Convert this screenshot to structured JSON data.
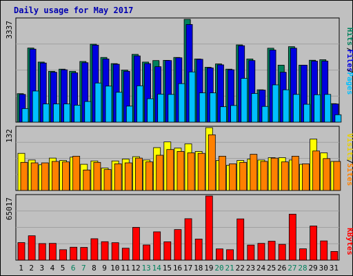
{
  "title": "Daily usage for May 2017",
  "colors": {
    "background": "#c0c0c0",
    "title": "#0000b0",
    "hits": "#00805c",
    "files": "#0000e0",
    "pages": "#00c0ff",
    "visits": "#ffff00",
    "sites": "#ff8000",
    "kbytes": "#ff0000",
    "weekend_label": "#00805c",
    "weekday_label": "#000000"
  },
  "legend": {
    "pages": "Pages",
    "files": "Files",
    "hits": "Hits",
    "sites": "Sites",
    "visits": "Visits",
    "kbytes": "KBytes",
    "sep": "/"
  },
  "chart_data": {
    "type": "bar",
    "title": "Daily usage for May 2017",
    "categories": [
      "1",
      "2",
      "3",
      "4",
      "5",
      "6",
      "7",
      "8",
      "9",
      "10",
      "11",
      "12",
      "13",
      "14",
      "15",
      "16",
      "17",
      "18",
      "19",
      "20",
      "21",
      "22",
      "23",
      "24",
      "25",
      "26",
      "27",
      "28",
      "29",
      "30",
      "31"
    ],
    "weekend_days": [
      "6",
      "7",
      "13",
      "14",
      "20",
      "21",
      "27",
      "28"
    ],
    "panels": [
      {
        "name": "hits-files-pages",
        "ymax": 3337,
        "ymax_label": "3337",
        "series": [
          {
            "name": "Hits",
            "values": [
              925,
              2405,
              1950,
              1650,
              1720,
              1650,
              1970,
              2530,
              2100,
              1900,
              1690,
              2200,
              1950,
              2000,
              2006,
              2100,
              3337,
              2050,
              1780,
              1890,
              1720,
              2508,
              2050,
              1050,
              2400,
              1850,
              2450,
              1850,
              2010,
              2026,
              600
            ]
          },
          {
            "name": "Files",
            "values": [
              900,
              2370,
              1920,
              1620,
              1700,
              1600,
              1930,
              2500,
              2050,
              1880,
              1650,
              2150,
              1900,
              1800,
              2000,
              2090,
              3170,
              2040,
              1760,
              1860,
              1700,
              2480,
              2000,
              1040,
              2340,
              1620,
              2400,
              1850,
              1980,
              1980,
              590
            ]
          },
          {
            "name": "Pages",
            "values": [
              440,
              1010,
              590,
              590,
              590,
              550,
              670,
              1270,
              1170,
              970,
              520,
              1180,
              760,
              910,
              900,
              1250,
              1630,
              950,
              950,
              500,
              540,
              1420,
              930,
              510,
              1210,
              1050,
              900,
              580,
              890,
              900,
              240
            ]
          }
        ]
      },
      {
        "name": "visits-sites",
        "ymax": 132,
        "ymax_label": "132",
        "series": [
          {
            "name": "Visits",
            "values": [
              78,
              64,
              54,
              68,
              63,
              70,
              55,
              62,
              47,
              62,
              66,
              71,
              64,
              90,
              102,
              89,
              98,
              82,
              132,
              63,
              53,
              63,
              66,
              64,
              69,
              69,
              64,
              55,
              108,
              79,
              61
            ]
          },
          {
            "name": "Sites",
            "values": [
              59,
              58,
              58,
              61,
              60,
              72,
              43,
              59,
              44,
              56,
              58,
              68,
              60,
              74,
              86,
              82,
              79,
              78,
              117,
              72,
              56,
              59,
              76,
              61,
              68,
              60,
              72,
              56,
              83,
              67,
              61
            ]
          }
        ]
      },
      {
        "name": "kbytes",
        "ymax": 65017,
        "ymax_label": "65017",
        "series": [
          {
            "name": "KBytes",
            "values": [
              17800,
              24700,
              16800,
              17000,
              10600,
              13100,
              12900,
              21700,
              18700,
              17700,
              12100,
              33200,
              15400,
              28700,
              18600,
              31000,
              42000,
              21400,
              65017,
              11400,
              10600,
              41800,
              15300,
              17000,
              19200,
              16000,
              46600,
              11500,
              34600,
              19500,
              8800
            ]
          }
        ]
      }
    ]
  }
}
